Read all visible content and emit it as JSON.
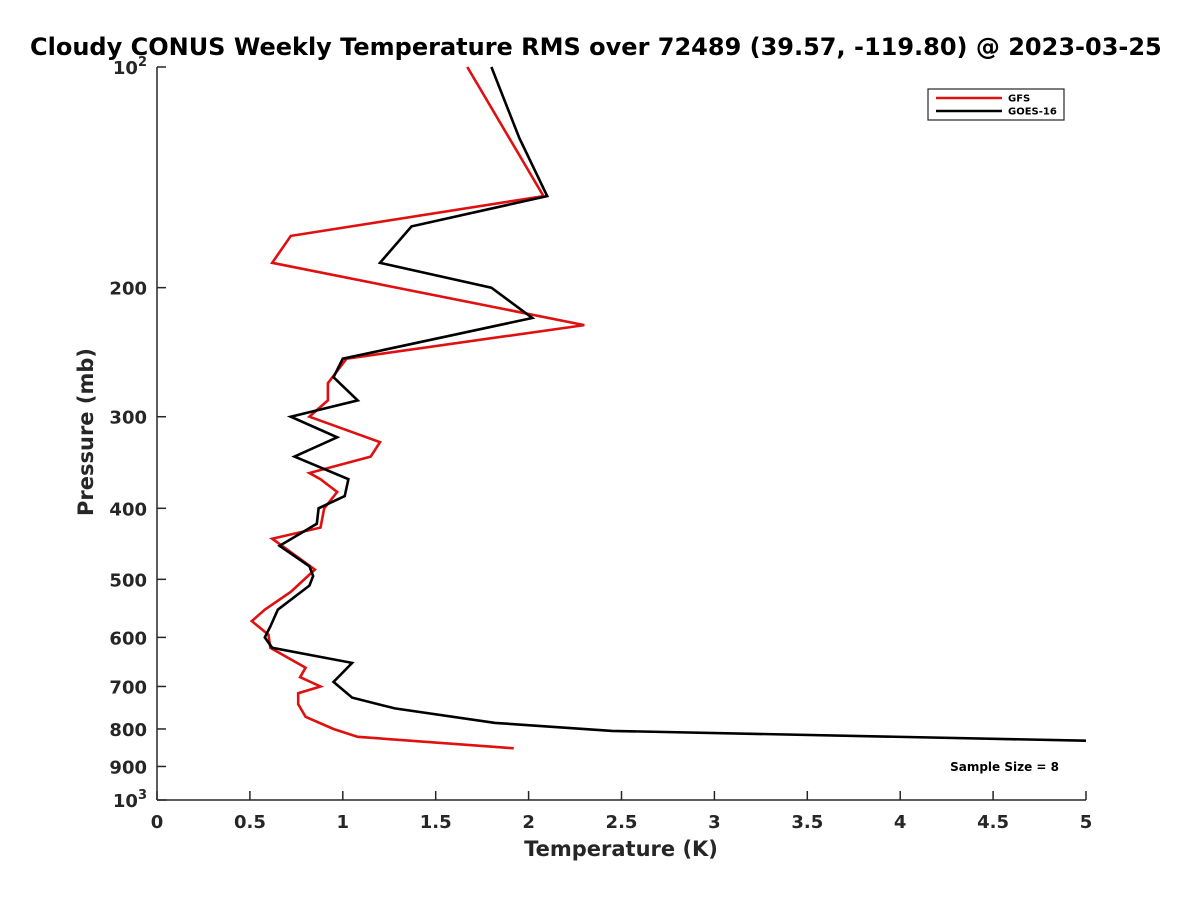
{
  "chart_data": {
    "type": "line",
    "title": "Cloudy CONUS Weekly Temperature RMS over 72489 (39.57, -119.80) @ 2023-03-25",
    "xlabel": "Temperature (K)",
    "ylabel": "Pressure (mb)",
    "xlim": [
      0,
      5
    ],
    "ylim": [
      100,
      1000
    ],
    "yscale": "log",
    "yreversed": true,
    "grid": false,
    "legend_position": "top-right",
    "x_ticks": [
      0,
      0.5,
      1,
      1.5,
      2,
      2.5,
      3,
      3.5,
      4,
      4.5,
      5
    ],
    "x_tick_labels": [
      "0",
      "0.5",
      "1",
      "1.5",
      "2",
      "2.5",
      "3",
      "3.5",
      "4",
      "4.5",
      "5"
    ],
    "y_ticks": [
      100,
      200,
      300,
      400,
      500,
      600,
      700,
      800,
      900,
      1000
    ],
    "y_tick_labels": [
      {
        "base": "10",
        "exp": "2"
      },
      {
        "base": "200",
        "exp": ""
      },
      {
        "base": "300",
        "exp": ""
      },
      {
        "base": "400",
        "exp": ""
      },
      {
        "base": "500",
        "exp": ""
      },
      {
        "base": "600",
        "exp": ""
      },
      {
        "base": "700",
        "exp": ""
      },
      {
        "base": "800",
        "exp": ""
      },
      {
        "base": "900",
        "exp": ""
      },
      {
        "base": "10",
        "exp": "3"
      }
    ],
    "series": [
      {
        "name": "GFS",
        "color": "#e01010",
        "points": [
          [
            1.67,
            100
          ],
          [
            2.08,
            150
          ],
          [
            0.72,
            170
          ],
          [
            0.62,
            185
          ],
          [
            2.3,
            225
          ],
          [
            1.02,
            250
          ],
          [
            0.92,
            270
          ],
          [
            0.92,
            285
          ],
          [
            0.82,
            300
          ],
          [
            1.2,
            325
          ],
          [
            1.15,
            340
          ],
          [
            0.82,
            358
          ],
          [
            0.88,
            365
          ],
          [
            0.97,
            380
          ],
          [
            0.9,
            400
          ],
          [
            0.88,
            425
          ],
          [
            0.62,
            440
          ],
          [
            0.85,
            485
          ],
          [
            0.72,
            520
          ],
          [
            0.58,
            550
          ],
          [
            0.51,
            570
          ],
          [
            0.6,
            595
          ],
          [
            0.61,
            620
          ],
          [
            0.8,
            660
          ],
          [
            0.77,
            680
          ],
          [
            0.88,
            700
          ],
          [
            0.76,
            715
          ],
          [
            0.76,
            740
          ],
          [
            0.8,
            770
          ],
          [
            0.95,
            800
          ],
          [
            1.08,
            820
          ],
          [
            1.92,
            850
          ]
        ]
      },
      {
        "name": "GOES-16",
        "color": "#000000",
        "points": [
          [
            1.8,
            100
          ],
          [
            1.95,
            125
          ],
          [
            2.1,
            150
          ],
          [
            1.37,
            165
          ],
          [
            1.2,
            185
          ],
          [
            1.8,
            200
          ],
          [
            2.02,
            220
          ],
          [
            1.0,
            250
          ],
          [
            0.95,
            265
          ],
          [
            1.08,
            285
          ],
          [
            0.72,
            300
          ],
          [
            0.97,
            320
          ],
          [
            0.74,
            340
          ],
          [
            1.03,
            365
          ],
          [
            1.01,
            385
          ],
          [
            0.87,
            400
          ],
          [
            0.86,
            420
          ],
          [
            0.66,
            450
          ],
          [
            0.82,
            480
          ],
          [
            0.84,
            495
          ],
          [
            0.82,
            510
          ],
          [
            0.65,
            550
          ],
          [
            0.61,
            580
          ],
          [
            0.58,
            600
          ],
          [
            0.62,
            620
          ],
          [
            1.05,
            650
          ],
          [
            1.0,
            670
          ],
          [
            0.95,
            690
          ],
          [
            1.05,
            725
          ],
          [
            1.28,
            750
          ],
          [
            1.82,
            785
          ],
          [
            2.45,
            805
          ],
          [
            5.0,
            830
          ]
        ]
      }
    ],
    "legend": [
      {
        "name": "GFS",
        "color": "#e01010"
      },
      {
        "name": "GOES-16",
        "color": "#000000"
      }
    ],
    "annotation": "Sample Size = 8"
  }
}
